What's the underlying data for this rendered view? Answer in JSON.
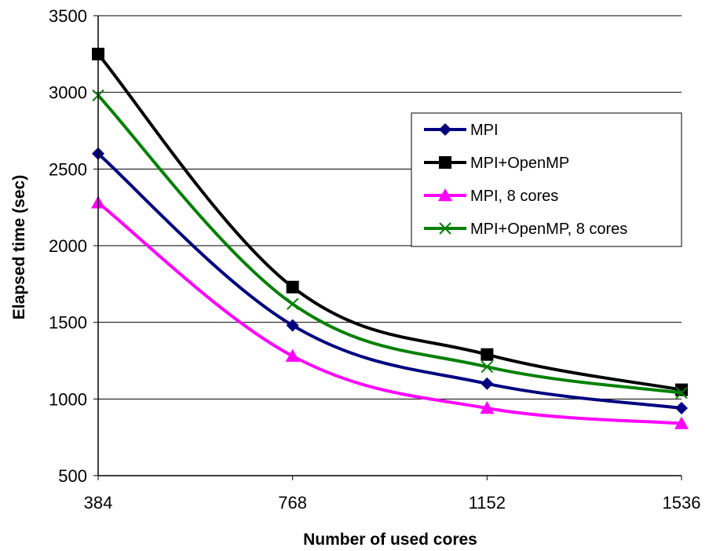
{
  "chart_data": {
    "type": "line",
    "title": "",
    "xlabel": "Number of used cores",
    "ylabel": "Elapsed time (sec)",
    "categories": [
      "384",
      "768",
      "1152",
      "1536"
    ],
    "ylim": [
      500,
      3500
    ],
    "yticks": [
      500,
      1000,
      1500,
      2000,
      2500,
      3000,
      3500
    ],
    "grid": "horizontal",
    "legend": "right",
    "series": [
      {
        "name": "MPI",
        "values": [
          2600,
          1480,
          1100,
          940
        ],
        "color": "#000080",
        "marker": "diamond"
      },
      {
        "name": "MPI+OpenMP",
        "values": [
          3250,
          1730,
          1290,
          1060
        ],
        "color": "#000000",
        "marker": "square"
      },
      {
        "name": "MPI, 8 cores",
        "values": [
          2280,
          1280,
          940,
          840
        ],
        "color": "#ff00ff",
        "marker": "triangle"
      },
      {
        "name": "MPI+OpenMP, 8 cores",
        "values": [
          2980,
          1620,
          1210,
          1040
        ],
        "color": "#008000",
        "marker": "x"
      }
    ]
  }
}
